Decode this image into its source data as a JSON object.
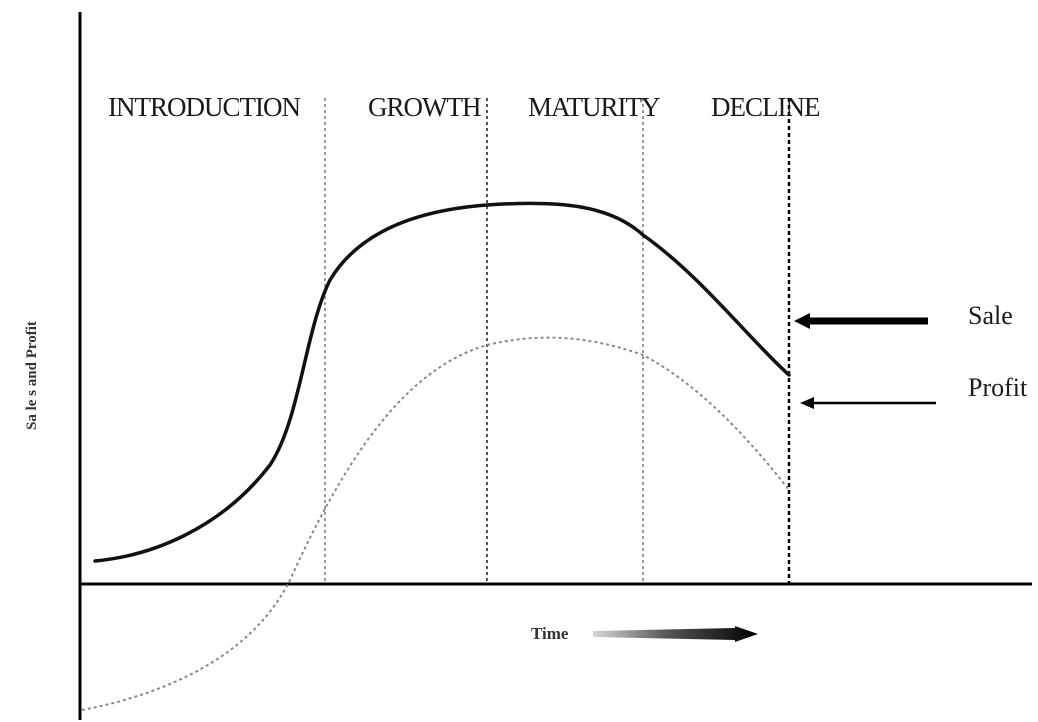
{
  "stages": [
    {
      "label": "INTRODUCTION"
    },
    {
      "label": "GROWTH"
    },
    {
      "label": "MATURITY"
    },
    {
      "label": "DECLINE"
    }
  ],
  "legend": {
    "sale_label": "Sale",
    "profit_label": "Profit"
  },
  "axes": {
    "y_label": "Sa le s and Profit",
    "x_label": "Time"
  },
  "colors": {
    "sales_curve": "#111111",
    "profit_curve": "#8a8a8a",
    "axis": "#000000",
    "divider": "#9a9a9a"
  }
}
